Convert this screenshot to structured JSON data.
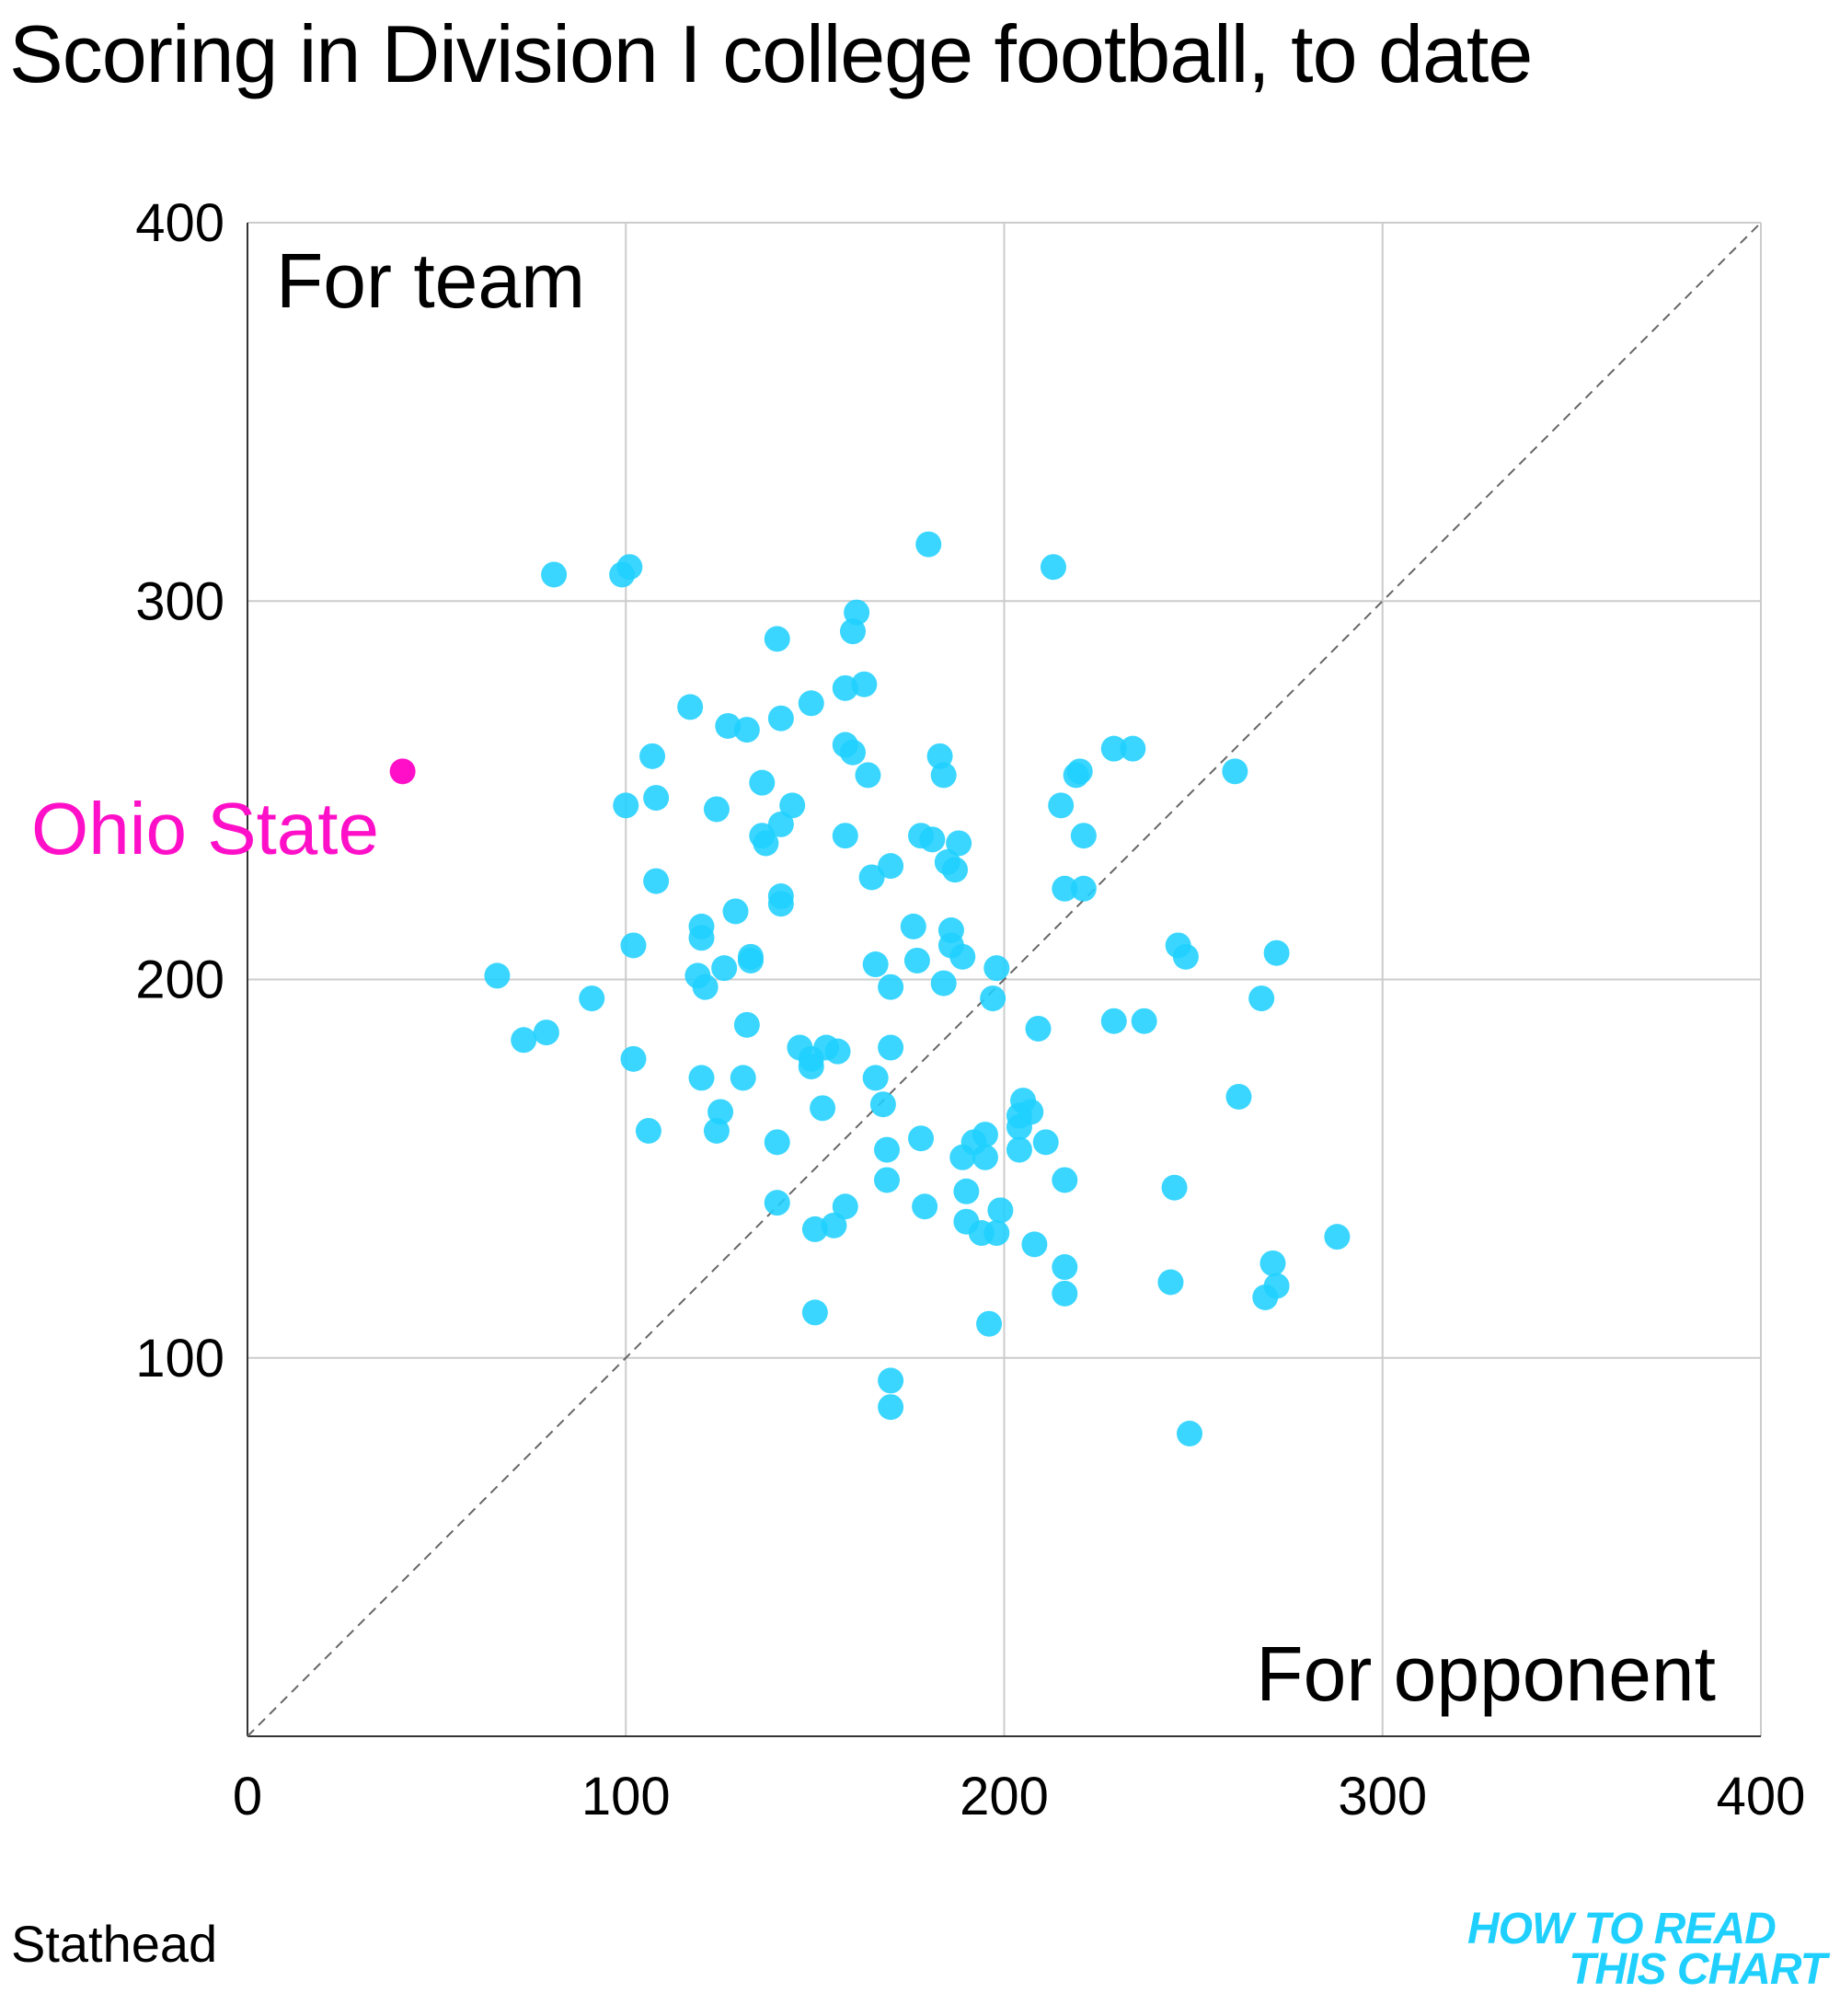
{
  "title": "Scoring in Division I college football, to date",
  "source": "Stathead",
  "brand": {
    "line1": "HOW TO READ",
    "line2": "THIS CHART"
  },
  "colors": {
    "points": "#1fd0ff",
    "highlight": "#ff10c8",
    "grid": "#cccccc",
    "diagonal": "#666666"
  },
  "chart_data": {
    "type": "scatter",
    "title": "Scoring in Division I college football, to date",
    "xlabel": "For opponent",
    "ylabel": "For team",
    "xlim": [
      0,
      400
    ],
    "ylim": [
      0,
      400
    ],
    "xticks": [
      "0",
      "100",
      "200",
      "300",
      "400"
    ],
    "yticks": [
      "100",
      "200",
      "300",
      "400"
    ],
    "grid": true,
    "reference_line": "y = x",
    "highlight": {
      "label": "Ohio State",
      "x": 41,
      "y": 255
    },
    "series": [
      {
        "name": "Teams",
        "points": [
          [
            81,
            307
          ],
          [
            99,
            307
          ],
          [
            101,
            309
          ],
          [
            180,
            315
          ],
          [
            213,
            309
          ],
          [
            161,
            297
          ],
          [
            160,
            292
          ],
          [
            140,
            290
          ],
          [
            163,
            278
          ],
          [
            158,
            277
          ],
          [
            149,
            273
          ],
          [
            117,
            272
          ],
          [
            141,
            269
          ],
          [
            127,
            267
          ],
          [
            132,
            266
          ],
          [
            158,
            262
          ],
          [
            160,
            260
          ],
          [
            107,
            259
          ],
          [
            183,
            259
          ],
          [
            229,
            261
          ],
          [
            234,
            261
          ],
          [
            164,
            254
          ],
          [
            184,
            254
          ],
          [
            136,
            252
          ],
          [
            219,
            254
          ],
          [
            220,
            255
          ],
          [
            261,
            255
          ],
          [
            100,
            246
          ],
          [
            108,
            248
          ],
          [
            124,
            245
          ],
          [
            144,
            246
          ],
          [
            215,
            246
          ],
          [
            141,
            241
          ],
          [
            136,
            238
          ],
          [
            137,
            236
          ],
          [
            158,
            238
          ],
          [
            178,
            238
          ],
          [
            181,
            237
          ],
          [
            188,
            236
          ],
          [
            221,
            238
          ],
          [
            170,
            230
          ],
          [
            185,
            231
          ],
          [
            187,
            229
          ],
          [
            108,
            226
          ],
          [
            165,
            227
          ],
          [
            141,
            222
          ],
          [
            141,
            220
          ],
          [
            216,
            224
          ],
          [
            221,
            224
          ],
          [
            120,
            214
          ],
          [
            129,
            218
          ],
          [
            120,
            211
          ],
          [
            176,
            214
          ],
          [
            186,
            213
          ],
          [
            186,
            209
          ],
          [
            246,
            209
          ],
          [
            272,
            207
          ],
          [
            102,
            209
          ],
          [
            133,
            205
          ],
          [
            126,
            203
          ],
          [
            166,
            204
          ],
          [
            177,
            205
          ],
          [
            133,
            206
          ],
          [
            189,
            206
          ],
          [
            198,
            203
          ],
          [
            248,
            206
          ],
          [
            66,
            201
          ],
          [
            119,
            201
          ],
          [
            121,
            198
          ],
          [
            170,
            198
          ],
          [
            184,
            199
          ],
          [
            91,
            195
          ],
          [
            197,
            195
          ],
          [
            268,
            195
          ],
          [
            73,
            184
          ],
          [
            79,
            186
          ],
          [
            132,
            188
          ],
          [
            209,
            187
          ],
          [
            229,
            189
          ],
          [
            237,
            189
          ],
          [
            146,
            182
          ],
          [
            153,
            182
          ],
          [
            156,
            181
          ],
          [
            149,
            179
          ],
          [
            149,
            177
          ],
          [
            170,
            182
          ],
          [
            102,
            179
          ],
          [
            120,
            174
          ],
          [
            131,
            174
          ],
          [
            166,
            174
          ],
          [
            205,
            168
          ],
          [
            262,
            169
          ],
          [
            125,
            165
          ],
          [
            152,
            166
          ],
          [
            168,
            167
          ],
          [
            204,
            164
          ],
          [
            207,
            165
          ],
          [
            204,
            161
          ],
          [
            106,
            160
          ],
          [
            124,
            160
          ],
          [
            140,
            157
          ],
          [
            169,
            155
          ],
          [
            178,
            158
          ],
          [
            192,
            157
          ],
          [
            195,
            159
          ],
          [
            211,
            157
          ],
          [
            204,
            155
          ],
          [
            189,
            153
          ],
          [
            195,
            153
          ],
          [
            169,
            147
          ],
          [
            216,
            147
          ],
          [
            245,
            145
          ],
          [
            190,
            144
          ],
          [
            140,
            141
          ],
          [
            158,
            140
          ],
          [
            179,
            140
          ],
          [
            190,
            136
          ],
          [
            199,
            139
          ],
          [
            150,
            134
          ],
          [
            155,
            135
          ],
          [
            194,
            133
          ],
          [
            198,
            133
          ],
          [
            208,
            130
          ],
          [
            288,
            132
          ],
          [
            216,
            124
          ],
          [
            271,
            125
          ],
          [
            244,
            120
          ],
          [
            216,
            117
          ],
          [
            269,
            116
          ],
          [
            272,
            119
          ],
          [
            150,
            112
          ],
          [
            196,
            109
          ],
          [
            170,
            94
          ],
          [
            170,
            87
          ],
          [
            249,
            80
          ]
        ]
      }
    ]
  }
}
